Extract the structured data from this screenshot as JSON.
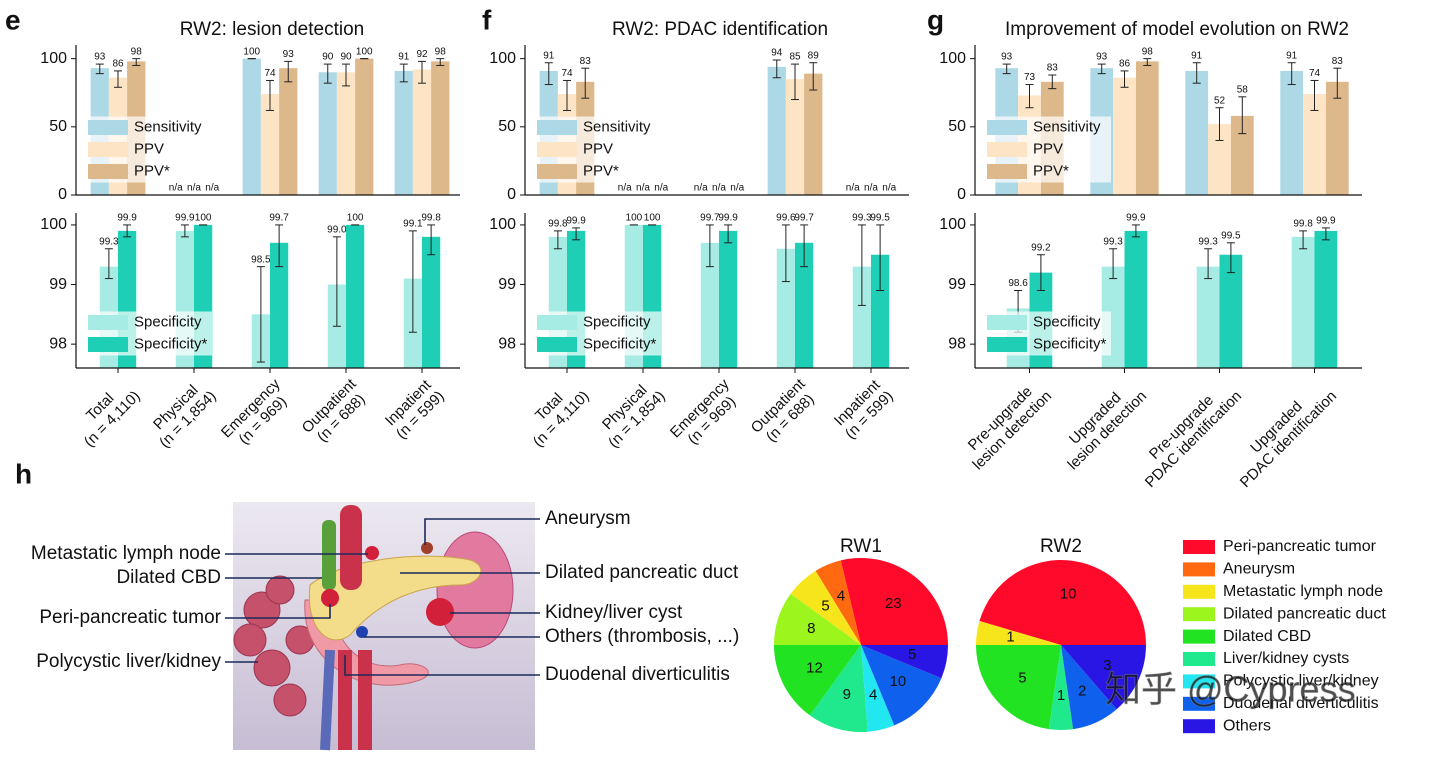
{
  "chart_data": [
    {
      "type": "bar",
      "panel": "e",
      "title": "RW2: lesion detection",
      "categories": [
        [
          "Total",
          "(n = 4,110)"
        ],
        [
          "Physical",
          "(n = 1,854)"
        ],
        [
          "Emergency",
          "(n = 969)"
        ],
        [
          "Outpatient",
          "(n = 688)"
        ],
        [
          "Inpatient",
          "(n = 599)"
        ]
      ],
      "subplots": [
        {
          "ylim": [
            0,
            110
          ],
          "yticks": [
            0,
            50,
            100
          ],
          "series": [
            {
              "name": "Sensitivity",
              "color": "#add8e6",
              "values": [
                93,
                null,
                100,
                90,
                91
              ],
              "lower": [
                89,
                null,
                100,
                82,
                83
              ],
              "upper": [
                96,
                null,
                100,
                96,
                96
              ],
              "value_labels": [
                "93",
                "n/a",
                "100",
                "90",
                "91"
              ]
            },
            {
              "name": "PPV",
              "color": "#fde4c4",
              "values": [
                86,
                null,
                74,
                90,
                92
              ],
              "lower": [
                79,
                null,
                62,
                80,
                82
              ],
              "upper": [
                91,
                null,
                84,
                96,
                98
              ],
              "value_labels": [
                "86",
                "n/a",
                "74",
                "90",
                "92"
              ]
            },
            {
              "name": "PPV*",
              "color": "#ddb88a",
              "values": [
                98,
                null,
                93,
                100,
                98
              ],
              "lower": [
                95,
                null,
                83,
                100,
                95
              ],
              "upper": [
                100,
                null,
                98,
                100,
                100
              ],
              "value_labels": [
                "98",
                "n/a",
                "93",
                "100",
                "98"
              ]
            }
          ]
        },
        {
          "ylim": [
            97.6,
            100.2
          ],
          "yticks": [
            98,
            99,
            100
          ],
          "series": [
            {
              "name": "Specificity",
              "color": "#a7ece4",
              "values": [
                99.3,
                99.9,
                98.5,
                99.0,
                99.1
              ],
              "lower": [
                99.1,
                99.8,
                97.7,
                98.3,
                98.2
              ],
              "upper": [
                99.6,
                100,
                99.3,
                99.8,
                99.9
              ],
              "value_labels": [
                "99.3",
                "99.9",
                "98.5",
                "99.0",
                "99.1"
              ]
            },
            {
              "name": "Specificity*",
              "color": "#1ecfb6",
              "values": [
                99.9,
                100,
                99.7,
                100,
                99.8
              ],
              "lower": [
                99.8,
                100,
                99.3,
                100,
                99.5
              ],
              "upper": [
                100,
                100,
                100,
                100,
                100
              ],
              "value_labels": [
                "99.9",
                "100",
                "99.7",
                "100",
                "99.8"
              ]
            }
          ]
        }
      ]
    },
    {
      "type": "bar",
      "panel": "f",
      "title": "RW2: PDAC identification",
      "categories": [
        [
          "Total",
          "(n = 4,110)"
        ],
        [
          "Physical",
          "(n = 1,854)"
        ],
        [
          "Emergency",
          "(n = 969)"
        ],
        [
          "Outpatient",
          "(n = 688)"
        ],
        [
          "Inpatient",
          "(n = 599)"
        ]
      ],
      "subplots": [
        {
          "ylim": [
            0,
            110
          ],
          "yticks": [
            0,
            50,
            100
          ],
          "series": [
            {
              "name": "Sensitivity",
              "color": "#add8e6",
              "values": [
                91,
                null,
                null,
                94,
                null
              ],
              "lower": [
                81,
                null,
                null,
                86,
                null
              ],
              "upper": [
                97,
                null,
                null,
                99,
                null
              ],
              "value_labels": [
                "91",
                "n/a",
                "n/a",
                "94",
                "n/a"
              ]
            },
            {
              "name": "PPV",
              "color": "#fde4c4",
              "values": [
                74,
                null,
                null,
                85,
                null
              ],
              "lower": [
                62,
                null,
                null,
                70,
                null
              ],
              "upper": [
                84,
                null,
                null,
                96,
                null
              ],
              "value_labels": [
                "74",
                "n/a",
                "n/a",
                "85",
                "n/a"
              ]
            },
            {
              "name": "PPV*",
              "color": "#ddb88a",
              "values": [
                83,
                null,
                null,
                89,
                null
              ],
              "lower": [
                71,
                null,
                null,
                77,
                null
              ],
              "upper": [
                93,
                null,
                null,
                97,
                null
              ],
              "value_labels": [
                "83",
                "n/a",
                "n/a",
                "89",
                "n/a"
              ]
            }
          ]
        },
        {
          "ylim": [
            97.6,
            100.2
          ],
          "yticks": [
            98,
            99,
            100
          ],
          "series": [
            {
              "name": "Specificity",
              "color": "#a7ece4",
              "values": [
                99.8,
                100,
                99.7,
                99.6,
                99.3
              ],
              "lower": [
                99.6,
                100,
                99.3,
                99.05,
                98.65
              ],
              "upper": [
                99.9,
                100,
                100,
                100,
                100
              ],
              "value_labels": [
                "99.8",
                "100",
                "99.7",
                "99.6",
                "99.3"
              ]
            },
            {
              "name": "Specificity*",
              "color": "#1ecfb6",
              "values": [
                99.9,
                100,
                99.9,
                99.7,
                99.5
              ],
              "lower": [
                99.75,
                100,
                99.7,
                99.3,
                98.9
              ],
              "upper": [
                99.95,
                100,
                100,
                100,
                100
              ],
              "value_labels": [
                "99.9",
                "100",
                "99.9",
                "99.7",
                "99.5"
              ]
            }
          ]
        }
      ]
    },
    {
      "type": "bar",
      "panel": "g",
      "title": "Improvement of model evolution on RW2",
      "categories": [
        [
          "Pre-upgrade",
          "lesion detection"
        ],
        [
          "Upgraded",
          "lesion detection"
        ],
        [
          "Pre-upgrade",
          "PDAC identification"
        ],
        [
          "Upgraded",
          "PDAC identification"
        ]
      ],
      "subplots": [
        {
          "ylim": [
            0,
            110
          ],
          "yticks": [
            0,
            50,
            100
          ],
          "series": [
            {
              "name": "Sensitivity",
              "color": "#add8e6",
              "values": [
                93,
                93,
                91,
                91
              ],
              "lower": [
                89,
                89,
                82,
                81
              ],
              "upper": [
                96,
                96,
                97,
                97
              ],
              "value_labels": [
                "93",
                "93",
                "91",
                "91"
              ]
            },
            {
              "name": "PPV",
              "color": "#fde4c4",
              "values": [
                73,
                86,
                52,
                74
              ],
              "lower": [
                64,
                79,
                40,
                62
              ],
              "upper": [
                81,
                91,
                64,
                84
              ],
              "value_labels": [
                "73",
                "86",
                "52",
                "74"
              ]
            },
            {
              "name": "PPV*",
              "color": "#ddb88a",
              "values": [
                83,
                98,
                58,
                83
              ],
              "lower": [
                78,
                95,
                45,
                71
              ],
              "upper": [
                88,
                100,
                72,
                93
              ],
              "value_labels": [
                "83",
                "98",
                "58",
                "83"
              ]
            }
          ]
        },
        {
          "ylim": [
            97.6,
            100.2
          ],
          "yticks": [
            98,
            99,
            100
          ],
          "series": [
            {
              "name": "Specificity",
              "color": "#a7ece4",
              "values": [
                98.6,
                99.3,
                99.3,
                99.8
              ],
              "lower": [
                98.2,
                99.1,
                99.1,
                99.6
              ],
              "upper": [
                98.9,
                99.6,
                99.6,
                99.9
              ],
              "value_labels": [
                "98.6",
                "99.3",
                "99.3",
                "99.8"
              ]
            },
            {
              "name": "Specificity*",
              "color": "#1ecfb6",
              "values": [
                99.2,
                99.9,
                99.5,
                99.9
              ],
              "lower": [
                98.9,
                99.8,
                99.2,
                99.75
              ],
              "upper": [
                99.5,
                100,
                99.7,
                99.95
              ],
              "value_labels": [
                "99.2",
                "99.9",
                "99.5",
                "99.9"
              ]
            }
          ]
        }
      ]
    },
    {
      "type": "pie",
      "panel": "h",
      "categories": [
        "Peri-pancreatic tumor",
        "Aneurysm",
        "Metastatic lymph node",
        "Dilated pancreatic duct",
        "Dilated CBD",
        "Liver/kidney cysts",
        "Polycystic liver/kidney",
        "Duodenal diverticulitis",
        "Others"
      ],
      "colors": [
        "#ff0a2a",
        "#ff6a10",
        "#f6e51a",
        "#9df51e",
        "#22e322",
        "#20e88c",
        "#22e6f0",
        "#1060ee",
        "#2a16e4"
      ],
      "series": [
        {
          "name": "RW1",
          "values": [
            23,
            4,
            5,
            8,
            12,
            9,
            4,
            10,
            5
          ]
        },
        {
          "name": "RW2",
          "values": [
            10,
            0,
            1,
            0,
            5,
            1,
            0,
            2,
            3
          ]
        }
      ]
    }
  ],
  "illustration": {
    "labels": [
      "Aneurysm",
      "Metastatic lymph node",
      "Dilated CBD",
      "Dilated pancreatic duct",
      "Peri-pancreatic tumor",
      "Kidney/liver cyst",
      "Others (thrombosis, ...)",
      "Polycystic liver/kidney",
      "Duodenal diverticulitis"
    ]
  },
  "watermark": "知乎 @Cypress"
}
